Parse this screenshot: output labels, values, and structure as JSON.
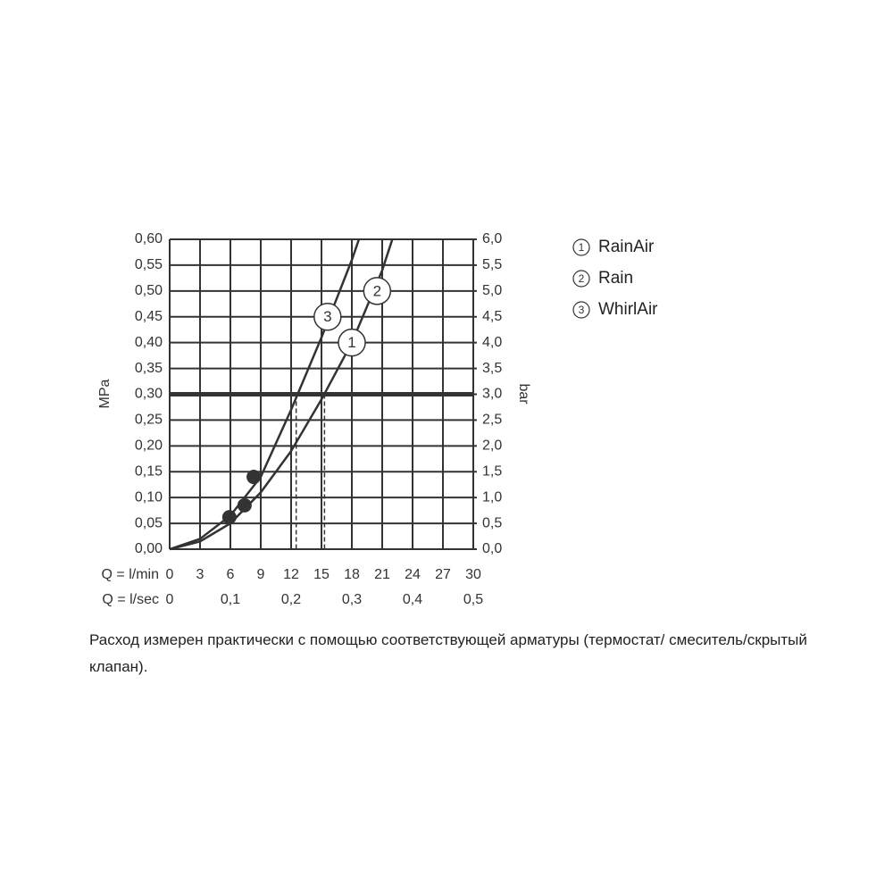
{
  "chart_data": {
    "type": "line",
    "ylabel": "MPa",
    "y2label": "bar",
    "xlabel": "Q = l/min",
    "x2label": "Q = l/sec",
    "xlim": [
      0,
      30
    ],
    "xticks": [
      0,
      3,
      6,
      9,
      12,
      15,
      18,
      21,
      24,
      27,
      30
    ],
    "x2lim": [
      0,
      0.5
    ],
    "x2ticks": [
      0,
      {
        "value": 0.1,
        "label": "0,1"
      },
      {
        "value": 0.2,
        "label": "0,2"
      },
      {
        "value": 0.3,
        "label": "0,3"
      },
      {
        "value": 0.4,
        "label": "0,4"
      },
      {
        "value": 0.5,
        "label": "0,5"
      }
    ],
    "ylim": [
      0,
      0.6
    ],
    "yticks": [
      {
        "value": 0,
        "label": "0,00"
      },
      {
        "value": 0.05,
        "label": "0,05"
      },
      {
        "value": 0.1,
        "label": "0,10"
      },
      {
        "value": 0.15,
        "label": "0,15"
      },
      {
        "value": 0.2,
        "label": "0,20"
      },
      {
        "value": 0.25,
        "label": "0,25"
      },
      {
        "value": 0.3,
        "label": "0,30"
      },
      {
        "value": 0.35,
        "label": "0,35"
      },
      {
        "value": 0.4,
        "label": "0,40"
      },
      {
        "value": 0.45,
        "label": "0,45"
      },
      {
        "value": 0.5,
        "label": "0,50"
      },
      {
        "value": 0.55,
        "label": "0,55"
      },
      {
        "value": 0.6,
        "label": "0,60"
      }
    ],
    "y2lim": [
      0,
      6
    ],
    "y2ticks": [
      {
        "value": 0,
        "label": "0,0"
      },
      {
        "value": 0.5,
        "label": "0,5"
      },
      {
        "value": 1,
        "label": "1,0"
      },
      {
        "value": 1.5,
        "label": "1,5"
      },
      {
        "value": 2,
        "label": "2,0"
      },
      {
        "value": 2.5,
        "label": "2,5"
      },
      {
        "value": 3,
        "label": "3,0"
      },
      {
        "value": 3.5,
        "label": "3,5"
      },
      {
        "value": 4,
        "label": "4,0"
      },
      {
        "value": 4.5,
        "label": "4,5"
      },
      {
        "value": 5,
        "label": "5,0"
      },
      {
        "value": 5.5,
        "label": "5,5"
      },
      {
        "value": 6,
        "label": "6,0"
      }
    ],
    "grid": true,
    "color": "#333333",
    "series": [
      {
        "x": [
          0,
          3,
          6,
          9,
          12,
          15,
          18,
          21,
          22
        ],
        "values": [
          0,
          0.015,
          0.05,
          0.11,
          0.19,
          0.29,
          0.4,
          0.54,
          0.6
        ]
      },
      {
        "x": [
          0,
          3,
          6,
          9,
          12,
          15,
          18,
          18.7
        ],
        "values": [
          0,
          0.02,
          0.065,
          0.14,
          0.27,
          0.41,
          0.56,
          0.6
        ]
      }
    ],
    "points": {
      "x": [
        5.9,
        7.4,
        8.3
      ],
      "values": [
        0.062,
        0.085,
        0.14
      ]
    },
    "hline": 0.3,
    "vlines": [
      12.5,
      15.3
    ],
    "annotations": [
      {
        "label": "1",
        "x": 18,
        "y": 0.4
      },
      {
        "label": "2",
        "x": 20.5,
        "y": 0.5
      },
      {
        "label": "3",
        "x": 15.6,
        "y": 0.45
      }
    ],
    "legend": [
      {
        "marker": "1",
        "name": "RainAir"
      },
      {
        "marker": "2",
        "name": "Rain"
      },
      {
        "marker": "3",
        "name": "WhirlAir"
      }
    ],
    "note": "Расход измерен практически с помощью соответствующей арматуры (термостат/ смеситель/скрытый клапан)."
  }
}
